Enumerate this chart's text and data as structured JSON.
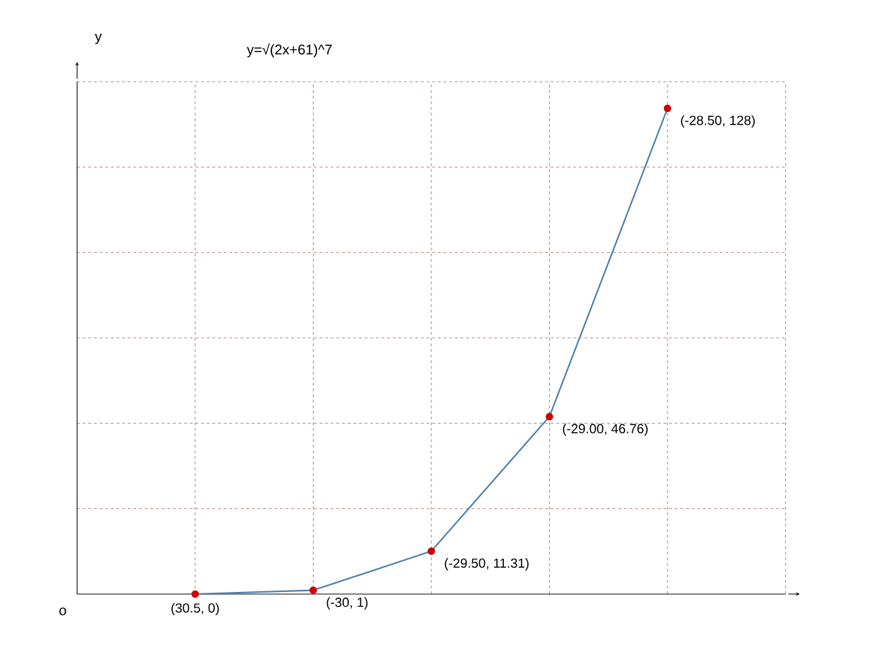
{
  "chart_data": {
    "type": "line",
    "title": "y=√(2x+61)^7",
    "ylabel": "y",
    "annotations": [
      "o"
    ],
    "categories": [
      null,
      null,
      null,
      null,
      null
    ],
    "series": [
      {
        "color": "#4a7eab",
        "values": [
          0,
          1,
          11.31,
          46.76,
          128
        ],
        "value_labels": [
          "(30.5, 0)",
          "(-30, 1)",
          "(-29.50, 11.31)",
          "(-29.00, 46.76)",
          "(-28.50, 128)"
        ]
      }
    ],
    "grid": true,
    "marker": "circle",
    "line_style": "solid"
  }
}
